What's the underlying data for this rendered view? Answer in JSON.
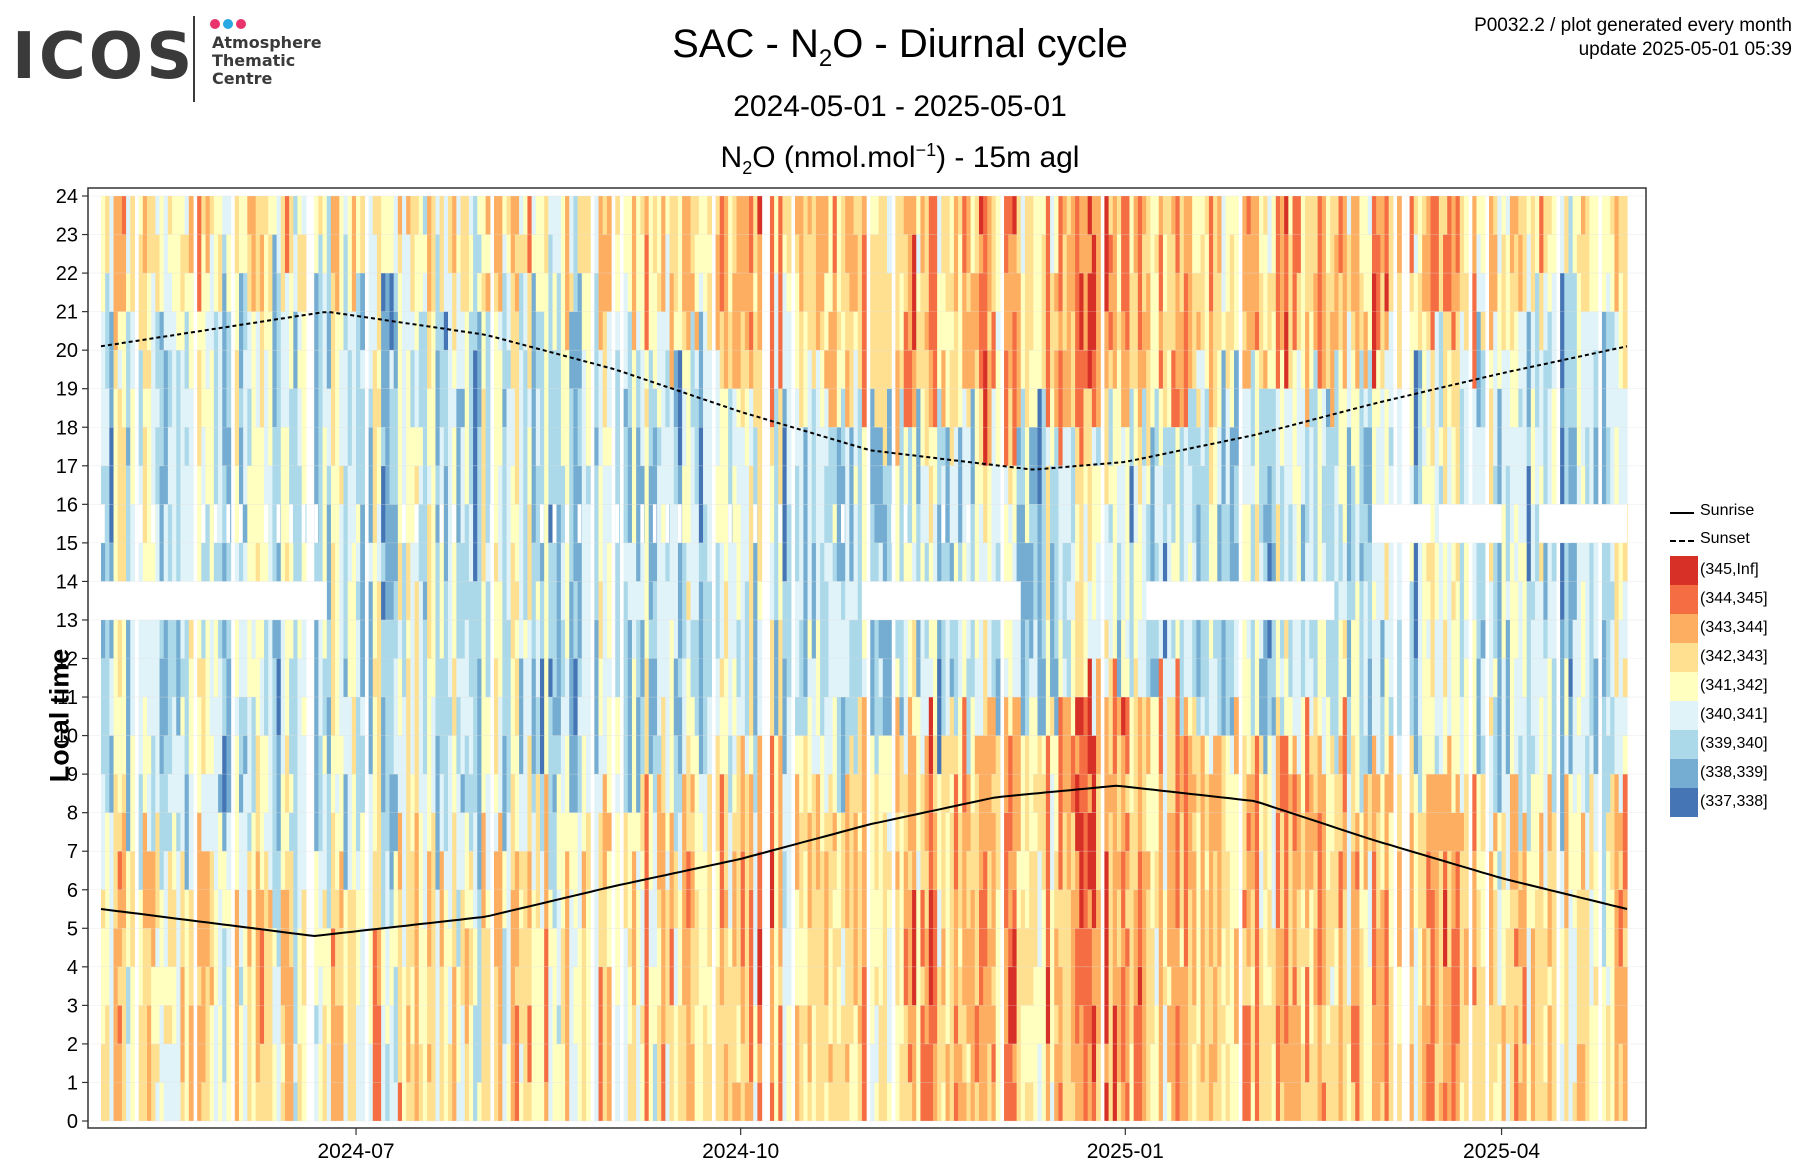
{
  "logo": {
    "wordmark": "ICOS",
    "lines": [
      "Atmosphere",
      "Thematic",
      "Centre"
    ],
    "dot_colors": [
      "#e8336d",
      "#29a9e1",
      "#e8336d"
    ]
  },
  "header": {
    "meta_line1": "P0032.2 / plot generated every month",
    "meta_line2": "update  2025-05-01 05:39",
    "title_prefix": "SAC - N",
    "title_sub": "2",
    "title_suffix": "O - Diurnal cycle",
    "date_range": "2024-05-01 - 2025-05-01",
    "unit_prefix": "N",
    "unit_sub": "2",
    "unit_mid": "O (nmol.mol",
    "unit_sup": "−1",
    "unit_suffix": ") - 15m agl"
  },
  "chart_data": {
    "type": "heatmap",
    "ylabel": "Local time",
    "x_start": "2024-05-01",
    "x_end": "2025-05-01",
    "x_ticks": [
      {
        "date": "2024-07-01",
        "label": "2024-07"
      },
      {
        "date": "2024-10-01",
        "label": "2024-10"
      },
      {
        "date": "2025-01-01",
        "label": "2025-01"
      },
      {
        "date": "2025-04-01",
        "label": "2025-04"
      }
    ],
    "y_ticks": [
      0,
      1,
      2,
      3,
      4,
      5,
      6,
      7,
      8,
      9,
      10,
      11,
      12,
      13,
      14,
      15,
      16,
      17,
      18,
      19,
      20,
      21,
      22,
      23,
      24
    ],
    "ylim": [
      0,
      24
    ],
    "color_bins": [
      {
        "label": "(345,Inf]",
        "color": "#d73027"
      },
      {
        "label": "(344,345]",
        "color": "#f46d43"
      },
      {
        "label": "(343,344]",
        "color": "#fdae61"
      },
      {
        "label": "(342,343]",
        "color": "#fee090"
      },
      {
        "label": "(341,342]",
        "color": "#ffffbf"
      },
      {
        "label": "(340,341]",
        "color": "#e0f3f8"
      },
      {
        "label": "(339,340]",
        "color": "#abd9e9"
      },
      {
        "label": "(338,339]",
        "color": "#74add1"
      },
      {
        "label": "(337,338]",
        "color": "#4575b4"
      }
    ],
    "missing_blocks": [
      {
        "start": "2024-05-01",
        "end": "2024-06-24",
        "hour_from": 13,
        "hour_to": 14
      },
      {
        "start": "2024-10-30",
        "end": "2024-12-07",
        "hour_from": 13,
        "hour_to": 14
      },
      {
        "start": "2025-01-06",
        "end": "2025-02-20",
        "hour_from": 13,
        "hour_to": 14
      },
      {
        "start": "2025-03-01",
        "end": "2025-03-15",
        "hour_from": 15,
        "hour_to": 16
      },
      {
        "start": "2025-03-17",
        "end": "2025-04-01",
        "hour_from": 15,
        "hour_to": 16
      },
      {
        "start": "2025-04-10",
        "end": "2025-05-01",
        "hour_from": 15,
        "hour_to": 16
      }
    ],
    "sunrise": {
      "name": "Sunrise",
      "points": [
        [
          "2024-05-01",
          5.5
        ],
        [
          "2024-06-21",
          4.8
        ],
        [
          "2024-08-01",
          5.3
        ],
        [
          "2024-09-01",
          6.1
        ],
        [
          "2024-10-01",
          6.8
        ],
        [
          "2024-11-01",
          7.7
        ],
        [
          "2024-12-01",
          8.4
        ],
        [
          "2024-12-30",
          8.7
        ],
        [
          "2025-02-01",
          8.3
        ],
        [
          "2025-03-01",
          7.3
        ],
        [
          "2025-04-01",
          6.3
        ],
        [
          "2025-05-01",
          5.5
        ]
      ]
    },
    "sunset": {
      "name": "Sunset",
      "points": [
        [
          "2024-05-01",
          20.1
        ],
        [
          "2024-06-24",
          21.0
        ],
        [
          "2024-08-01",
          20.4
        ],
        [
          "2024-09-01",
          19.5
        ],
        [
          "2024-10-01",
          18.4
        ],
        [
          "2024-11-01",
          17.4
        ],
        [
          "2024-12-10",
          16.9
        ],
        [
          "2025-01-01",
          17.1
        ],
        [
          "2025-02-01",
          17.8
        ],
        [
          "2025-03-01",
          18.6
        ],
        [
          "2025-04-01",
          19.4
        ],
        [
          "2025-05-01",
          20.1
        ]
      ]
    }
  }
}
